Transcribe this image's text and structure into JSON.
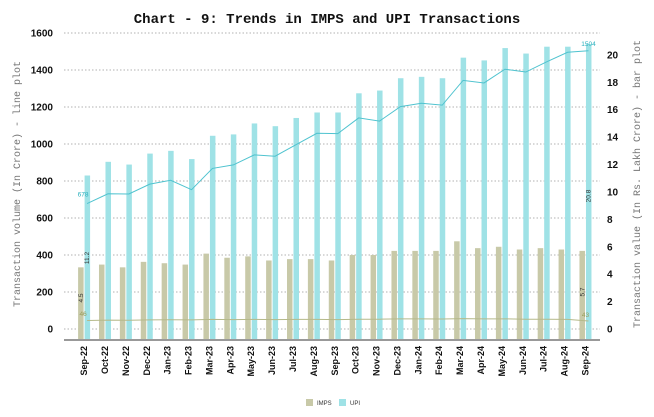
{
  "chart_data": {
    "type": "bar+line",
    "title": "Chart - 9: Trends in IMPS and UPI Transactions",
    "ylabel_left": "Transaction volume (In Crore) - line plot",
    "ylabel_right": "Transaction value (In Rs. Lakh Crore) - bar plot",
    "ylim_left": [
      0,
      1600
    ],
    "ylim_right": [
      0,
      21.6
    ],
    "yticks_left": [
      "0",
      "200",
      "400",
      "600",
      "800",
      "1000",
      "1200",
      "1400",
      "1600"
    ],
    "yticks_right": [
      "0",
      "2",
      "4",
      "6",
      "8",
      "10",
      "12",
      "14",
      "16",
      "18",
      "20"
    ],
    "categories": [
      "Sep-22",
      "Oct-22",
      "Nov-22",
      "Dec-22",
      "Jan-23",
      "Feb-23",
      "Mar-23",
      "Apr-23",
      "May-23",
      "Jun-23",
      "Jul-23",
      "Aug-23",
      "Sep-23",
      "Oct-23",
      "Nov-23",
      "Dec-23",
      "Jan-24",
      "Feb-24",
      "Mar-24",
      "Apr-24",
      "May-24",
      "Jun-24",
      "Jul-24",
      "Aug-24",
      "Sep-24"
    ],
    "bar_series": [
      {
        "name": "IMPS",
        "color": "#c8c9a8",
        "values": [
          4.5,
          4.7,
          4.5,
          4.9,
          4.8,
          4.7,
          5.5,
          5.2,
          5.3,
          5.0,
          5.1,
          5.1,
          5.0,
          5.4,
          5.4,
          5.7,
          5.7,
          5.7,
          6.4,
          5.9,
          6.0,
          5.8,
          5.9,
          5.8,
          5.7
        ]
      },
      {
        "name": "UPI",
        "color": "#9fe2e6",
        "values": [
          11.2,
          12.2,
          12.0,
          12.8,
          13.0,
          12.4,
          14.1,
          14.2,
          15.0,
          14.8,
          15.4,
          15.8,
          15.8,
          17.2,
          17.4,
          18.3,
          18.4,
          18.3,
          19.8,
          19.6,
          20.5,
          20.1,
          20.6,
          20.6,
          20.8
        ]
      }
    ],
    "line_series": [
      {
        "name": "IMPS",
        "color": "#b5b98a",
        "values": [
          46,
          48,
          47,
          49,
          50,
          49,
          52,
          51,
          52,
          51,
          52,
          52,
          51,
          53,
          53,
          55,
          55,
          54,
          56,
          55,
          55,
          53,
          53,
          52,
          43
        ]
      },
      {
        "name": "UPI",
        "color": "#4fc3cf",
        "values": [
          678,
          731,
          730,
          783,
          804,
          753,
          868,
          887,
          941,
          934,
          996,
          1058,
          1056,
          1141,
          1124,
          1202,
          1220,
          1210,
          1344,
          1330,
          1404,
          1389,
          1444,
          1496,
          1504
        ]
      }
    ],
    "data_labels": {
      "imps_bar_first": "4.5",
      "upi_bar_first": "11.2",
      "imps_line_first": "46",
      "upi_line_first": "678",
      "imps_bar_last": "5.7",
      "upi_bar_last": "20.8",
      "imps_line_last": "43",
      "upi_line_last": "1504"
    },
    "legend": {
      "position": "bottom",
      "entries": [
        "IMPS",
        "UPI"
      ]
    },
    "grid": true
  }
}
